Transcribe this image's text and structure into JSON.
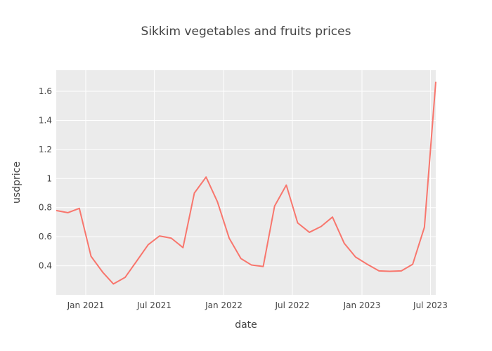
{
  "chart_data": {
    "type": "line",
    "title": "Sikkim vegetables and fruits prices",
    "xlabel": "date",
    "ylabel": "usdprice",
    "grid": true,
    "legend": "none",
    "background_color": "#ebebeb",
    "grid_color": "#ffffff",
    "series": [
      {
        "color": "#f8766d",
        "x": [
          "2020-10-15",
          "2020-11-15",
          "2020-12-15",
          "2021-01-15",
          "2021-02-15",
          "2021-03-15",
          "2021-04-15",
          "2021-05-15",
          "2021-06-15",
          "2021-07-15",
          "2021-08-15",
          "2021-09-15",
          "2021-10-15",
          "2021-11-15",
          "2021-12-15",
          "2022-01-15",
          "2022-02-15",
          "2022-03-15",
          "2022-04-15",
          "2022-05-15",
          "2022-06-15",
          "2022-07-15",
          "2022-08-15",
          "2022-09-15",
          "2022-10-15",
          "2022-11-15",
          "2022-12-15",
          "2023-01-15",
          "2023-02-15",
          "2023-03-15",
          "2023-04-15",
          "2023-05-15",
          "2023-06-15",
          "2023-07-15"
        ],
        "y": [
          0.78,
          0.765,
          0.795,
          0.465,
          0.355,
          0.275,
          0.32,
          0.43,
          0.545,
          0.605,
          0.59,
          0.525,
          0.9,
          1.01,
          0.84,
          0.59,
          0.45,
          0.405,
          0.395,
          0.81,
          0.955,
          0.695,
          0.63,
          0.67,
          0.735,
          0.555,
          0.46,
          0.41,
          0.365,
          0.362,
          0.365,
          0.41,
          0.665,
          1.665
        ]
      }
    ],
    "x_ticks": [
      {
        "date": "2021-01-01",
        "label": "Jan 2021"
      },
      {
        "date": "2021-07-01",
        "label": "Jul 2021"
      },
      {
        "date": "2022-01-01",
        "label": "Jan 2022"
      },
      {
        "date": "2022-07-01",
        "label": "Jul 2022"
      },
      {
        "date": "2023-01-01",
        "label": "Jan 2023"
      },
      {
        "date": "2023-07-01",
        "label": "Jul 2023"
      }
    ],
    "xlim": [
      "2020-10-15",
      "2023-07-15"
    ],
    "y_ticks": [
      {
        "value": 0.4,
        "label": "0.4"
      },
      {
        "value": 0.6,
        "label": "0.6"
      },
      {
        "value": 0.8,
        "label": "0.8"
      },
      {
        "value": 1.0,
        "label": "1"
      },
      {
        "value": 1.2,
        "label": "1.2"
      },
      {
        "value": 1.4,
        "label": "1.4"
      },
      {
        "value": 1.6,
        "label": "1.6"
      }
    ],
    "ylim": [
      0.2,
      1.745
    ]
  }
}
